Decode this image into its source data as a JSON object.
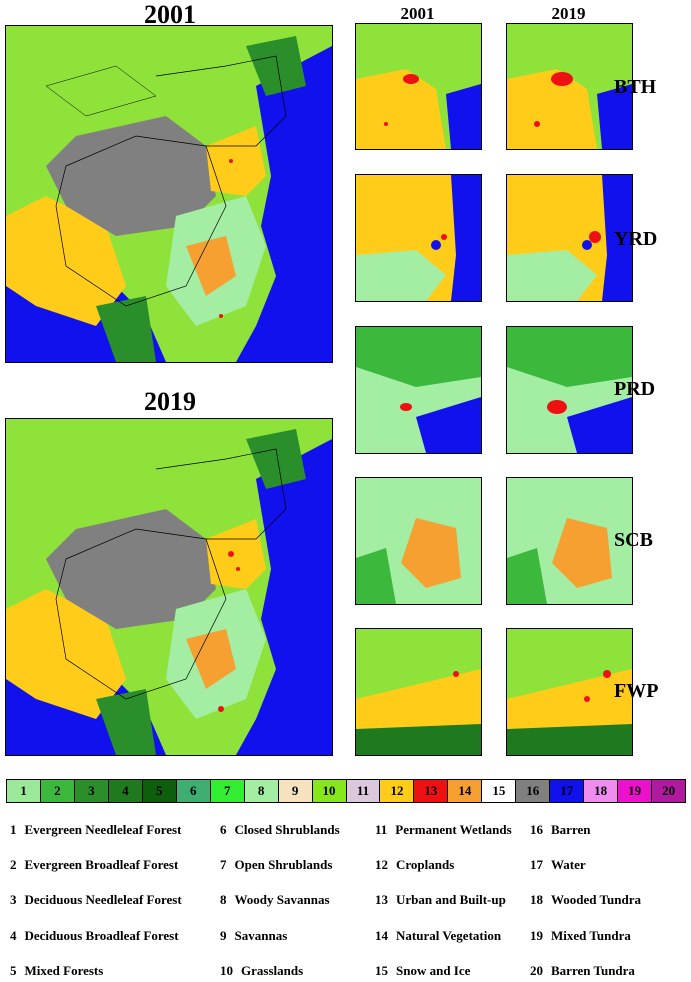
{
  "main_maps": [
    {
      "title": "2001"
    },
    {
      "title": "2019"
    }
  ],
  "column_titles": [
    "2001",
    "2019"
  ],
  "regions": [
    "BTH",
    "YRD",
    "PRD",
    "SCB",
    "FWP"
  ],
  "legend": {
    "classes": [
      {
        "code": "1",
        "label": "Evergreen Needleleaf Forest",
        "color": "#9be89b"
      },
      {
        "code": "2",
        "label": "Evergreen Broadleaf Forest",
        "color": "#3cb83c"
      },
      {
        "code": "3",
        "label": "Deciduous Needleleaf Forest",
        "color": "#2a8f2a"
      },
      {
        "code": "4",
        "label": "Deciduous Broadleaf Forest",
        "color": "#1f7a1f"
      },
      {
        "code": "5",
        "label": "Mixed Forests",
        "color": "#0e5e0e"
      },
      {
        "code": "6",
        "label": "Closed Shrublands",
        "color": "#3fae70"
      },
      {
        "code": "7",
        "label": "Open Shrublands",
        "color": "#33ee33"
      },
      {
        "code": "8",
        "label": "Woody Savannas",
        "color": "#a4eea4"
      },
      {
        "code": "9",
        "label": "Savannas",
        "color": "#f7e2c0"
      },
      {
        "code": "10",
        "label": "Grasslands",
        "color": "#88e61c"
      },
      {
        "code": "11",
        "label": "Permanent Wetlands",
        "color": "#dcc8dc"
      },
      {
        "code": "12",
        "label": "Croplands",
        "color": "#ffcc1a"
      },
      {
        "code": "13",
        "label": "Urban and Built-up",
        "color": "#ee1111"
      },
      {
        "code": "14",
        "label": "Natural Vegetation",
        "color": "#f5a030"
      },
      {
        "code": "15",
        "label": "Snow and Ice",
        "color": "#ffffff"
      },
      {
        "code": "16",
        "label": "Barren",
        "color": "#808080"
      },
      {
        "code": "17",
        "label": "Water",
        "color": "#1111ee"
      },
      {
        "code": "18",
        "label": "Wooded Tundra",
        "color": "#f08cf0"
      },
      {
        "code": "19",
        "label": "Mixed Tundra",
        "color": "#ee11cc"
      },
      {
        "code": "20",
        "label": "Barren Tundra",
        "color": "#b01a9e"
      }
    ]
  }
}
